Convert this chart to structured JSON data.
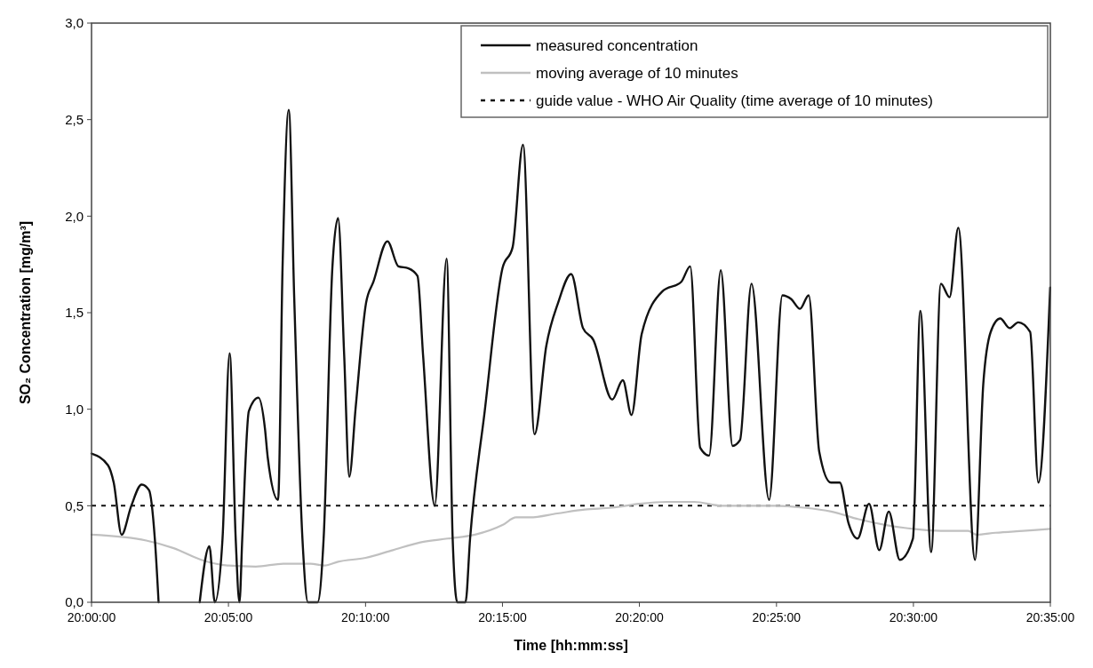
{
  "chart_data": {
    "type": "line",
    "xlabel": "Time [hh:mm:ss]",
    "ylabel": "SO₂ Concentration [mg/m³]",
    "xlim": [
      20,
      20.5833
    ],
    "ylim": [
      0,
      3
    ],
    "xticks": [
      {
        "value": 20,
        "label": "20:00:00"
      },
      {
        "value": 20.0833,
        "label": "20:05:00"
      },
      {
        "value": 20.1667,
        "label": "20:10:00"
      },
      {
        "value": 20.25,
        "label": "20:15:00"
      },
      {
        "value": 20.3333,
        "label": "20:20:00"
      },
      {
        "value": 20.4167,
        "label": "20:25:00"
      },
      {
        "value": 20.5,
        "label": "20:30:00"
      },
      {
        "value": 20.5833,
        "label": "20:35:00"
      }
    ],
    "yticks": [
      {
        "value": 0,
        "label": "0,0"
      },
      {
        "value": 0.5,
        "label": "0,5"
      },
      {
        "value": 1,
        "label": "1,0"
      },
      {
        "value": 1.5,
        "label": "1,5"
      },
      {
        "value": 2,
        "label": "2,0"
      },
      {
        "value": 2.5,
        "label": "2,5"
      },
      {
        "value": 3,
        "label": "3,0"
      }
    ],
    "legend": "top right",
    "grid": false,
    "marker": "none",
    "line_style": "solid",
    "series": [
      {
        "name": "measured concentration",
        "color": "#111111",
        "x": [
          20,
          20.01,
          20.0135,
          20.0183,
          20.0242,
          20.0305,
          20.035,
          20.0385,
          20.0408,
          20.0533,
          20.0658,
          20.0717,
          20.075,
          20.0797,
          20.084,
          20.0877,
          20.09,
          20.0917,
          20.0957,
          20.1015,
          20.1055,
          20.1072,
          20.1135,
          20.1162,
          20.12,
          20.1233,
          20.1283,
          20.1317,
          20.1375,
          20.1412,
          20.1465,
          20.15,
          20.1537,
          20.1568,
          20.1607,
          20.167,
          20.1715,
          20.18,
          20.1867,
          20.1928,
          20.1983,
          20.2017,
          20.2088,
          20.216,
          20.2197,
          20.2225,
          20.2275,
          20.2303,
          20.2392,
          20.25,
          20.2562,
          20.2625,
          20.2695,
          20.2767,
          20.2838,
          20.2918,
          20.299,
          20.3052,
          20.3168,
          20.3232,
          20.3285,
          20.3347,
          20.3472,
          20.3588,
          20.3642,
          20.3703,
          20.3757,
          20.3828,
          20.39,
          20.3945,
          20.4015,
          20.4122,
          20.4203,
          20.4257,
          20.431,
          20.4363,
          20.4427,
          20.4498,
          20.4552,
          20.4605,
          20.466,
          20.473,
          20.4792,
          20.485,
          20.4917,
          20.4997,
          20.5042,
          20.5108,
          20.5167,
          20.522,
          20.5273,
          20.5375,
          20.5425,
          20.547,
          20.5528,
          20.5585,
          20.5638,
          20.571,
          20.576,
          20.5832
        ],
        "values": [
          0.77,
          0.71,
          0.62,
          0.35,
          0.5,
          0.61,
          0.58,
          0.33,
          0,
          null,
          0,
          0.29,
          0,
          0.33,
          1.29,
          0.33,
          0,
          0.33,
          0.99,
          1.06,
          0.9,
          0.75,
          0.53,
          1.73,
          2.55,
          1.58,
          0.33,
          0,
          0,
          0.33,
          1.73,
          1.99,
          1.28,
          0.65,
          1.01,
          1.55,
          1.66,
          1.87,
          1.74,
          1.73,
          1.69,
          1.28,
          0.5,
          1.78,
          0.33,
          0,
          0,
          0.33,
          0.99,
          1.73,
          1.84,
          2.37,
          0.87,
          1.33,
          1.55,
          1.7,
          1.42,
          1.36,
          1.05,
          1.15,
          0.97,
          1.39,
          1.61,
          1.66,
          1.74,
          0.8,
          0.76,
          1.72,
          0.81,
          0.84,
          1.65,
          0.53,
          1.59,
          1.57,
          1.52,
          1.59,
          0.78,
          0.62,
          0.62,
          0.41,
          0.33,
          0.51,
          0.27,
          0.47,
          0.22,
          0.33,
          1.51,
          0.26,
          1.65,
          1.58,
          1.94,
          0.22,
          1.13,
          1.4,
          1.47,
          1.42,
          1.45,
          1.4,
          0.62,
          1.63
        ]
      },
      {
        "name": "moving average of 10 minutes",
        "color": "#c0c0c0",
        "x": [
          20,
          20.0333,
          20.05,
          20.0667,
          20.0833,
          20.1,
          20.1167,
          20.1333,
          20.1417,
          20.15,
          20.1667,
          20.1833,
          20.2,
          20.2167,
          20.2333,
          20.25,
          20.2583,
          20.2667,
          20.2833,
          20.3,
          20.3167,
          20.3333,
          20.35,
          20.3667,
          20.3833,
          20.4,
          20.4167,
          20.4333,
          20.45,
          20.4667,
          20.4833,
          20.5,
          20.5167,
          20.5333,
          20.5383,
          20.55,
          20.5667,
          20.5833
        ],
        "values": [
          0.35,
          0.32,
          0.28,
          0.22,
          0.19,
          0.185,
          0.2,
          0.2,
          0.19,
          0.21,
          0.23,
          0.27,
          0.31,
          0.33,
          0.35,
          0.4,
          0.44,
          0.44,
          0.46,
          0.48,
          0.49,
          0.51,
          0.52,
          0.52,
          0.5,
          0.5,
          0.5,
          0.49,
          0.47,
          0.43,
          0.4,
          0.38,
          0.37,
          0.37,
          0.35,
          0.36,
          0.37,
          0.38
        ]
      }
    ],
    "ref_lines": [
      {
        "axis": "y",
        "value": 0.5,
        "label": "guide value - WHO Air Quality (time average of 10 minutes)",
        "color": "#111111",
        "line_style": "dashed"
      }
    ]
  }
}
